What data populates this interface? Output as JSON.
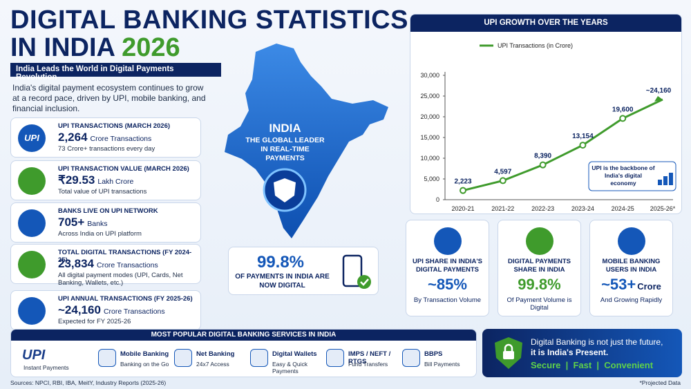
{
  "header": {
    "title_line1": "DIGITAL BANKING STATISTICS",
    "title_line2": "IN INDIA",
    "title_year": "2026",
    "banner": "India Leads the World in Digital Payments Revolution",
    "intro": "India's digital payment ecosystem continues to grow at a record pace, driven by UPI, mobile banking, and financial inclusion."
  },
  "stats": [
    {
      "logo": "UPI",
      "label": "UPI TRANSACTIONS (MARCH 2026)",
      "value": "2,264",
      "unit": "Crore Transactions",
      "note": "73 Crore+ transactions every day"
    },
    {
      "label": "UPI TRANSACTION VALUE (MARCH 2026)",
      "value": "₹29.53",
      "unit": "Lakh Crore",
      "note": "Total value of UPI transactions"
    },
    {
      "label": "BANKS LIVE ON UPI NETWORK",
      "value": "705+",
      "unit": "Banks",
      "note": "Across India on UPI platform"
    },
    {
      "label": "TOTAL DIGITAL TRANSACTIONS (FY 2024-25)",
      "value": "23,834",
      "unit": "Crore Transactions",
      "note": "All digital payment modes (UPI, Cards, Net Banking, Wallets, etc.)"
    },
    {
      "label": "UPI ANNUAL TRANSACTIONS (FY 2025-26)",
      "value": "~24,160",
      "unit": "Crore Transactions",
      "note": "Expected for FY 2025-26"
    }
  ],
  "map": {
    "title": "INDIA",
    "subtitle": "THE GLOBAL LEADER IN REAL-TIME PAYMENTS"
  },
  "highlight": {
    "value": "99.8%",
    "text": "OF PAYMENTS IN INDIA ARE NOW DIGITAL"
  },
  "chart_data": {
    "type": "line",
    "title": "UPI GROWTH OVER THE YEARS",
    "categories": [
      "2020-21",
      "2021-22",
      "2022-23",
      "2023-24",
      "2024-25",
      "2025-26*"
    ],
    "category_notes": [
      null,
      null,
      null,
      null,
      null,
      "(Projected)"
    ],
    "series": [
      {
        "name": "UPI Transactions (in Crore)",
        "color": "#3f9b2c",
        "values": [
          2223,
          4597,
          8390,
          13154,
          19600,
          24160
        ],
        "value_labels": [
          "2,223",
          "4,597",
          "8,390",
          "13,154",
          "19,600",
          "~24,160"
        ]
      }
    ],
    "ylim": [
      0,
      30000
    ],
    "yticks": [
      0,
      {
        "value": 5000,
        "label": "5,000"
      },
      {
        "value": 10000,
        "label": "10,000"
      },
      {
        "value": 15000,
        "label": "15,000"
      },
      {
        "value": 20000,
        "label": "20,000"
      },
      {
        "value": 25000,
        "label": "25,000"
      },
      {
        "value": 30000,
        "label": "30,000"
      }
    ],
    "grid": false,
    "legend": "top",
    "annotation": "UPI is the backbone of India's digital economy"
  },
  "metrics": [
    {
      "label": "UPI SHARE IN INDIA'S DIGITAL PAYMENTS",
      "value": "~85%",
      "note": "By Transaction Volume"
    },
    {
      "label": "DIGITAL PAYMENTS SHARE IN INDIA",
      "value": "99.8%",
      "note": "Of Payment Volume is Digital"
    },
    {
      "label": "MOBILE BANKING USERS IN INDIA",
      "value": "~53+",
      "unit": "Crore",
      "note": "And Growing Rapidly"
    }
  ],
  "services": {
    "title": "MOST POPULAR DIGITAL BANKING SERVICES IN INDIA",
    "items": [
      {
        "logo": "UPI",
        "note": "Instant Payments"
      },
      {
        "label": "Mobile Banking",
        "note": "Banking on the Go"
      },
      {
        "label": "Net Banking",
        "note": "24x7 Access"
      },
      {
        "label": "Digital Wallets",
        "note": "Easy & Quick Payments"
      },
      {
        "label": "IMPS / NEFT / RTGS",
        "note": "Fund Transfers"
      },
      {
        "label": "BBPS",
        "note": "Bill Payments"
      }
    ]
  },
  "footer": {
    "line1": "Digital Banking is not just the future,",
    "line2": "it is India's Present.",
    "tagline": "Secure  |  Fast  |  Convenient",
    "sources": "Sources: NPCI, RBI, IBA, MeitY, Industry Reports (2025-26)",
    "projected": "*Projected Data"
  }
}
